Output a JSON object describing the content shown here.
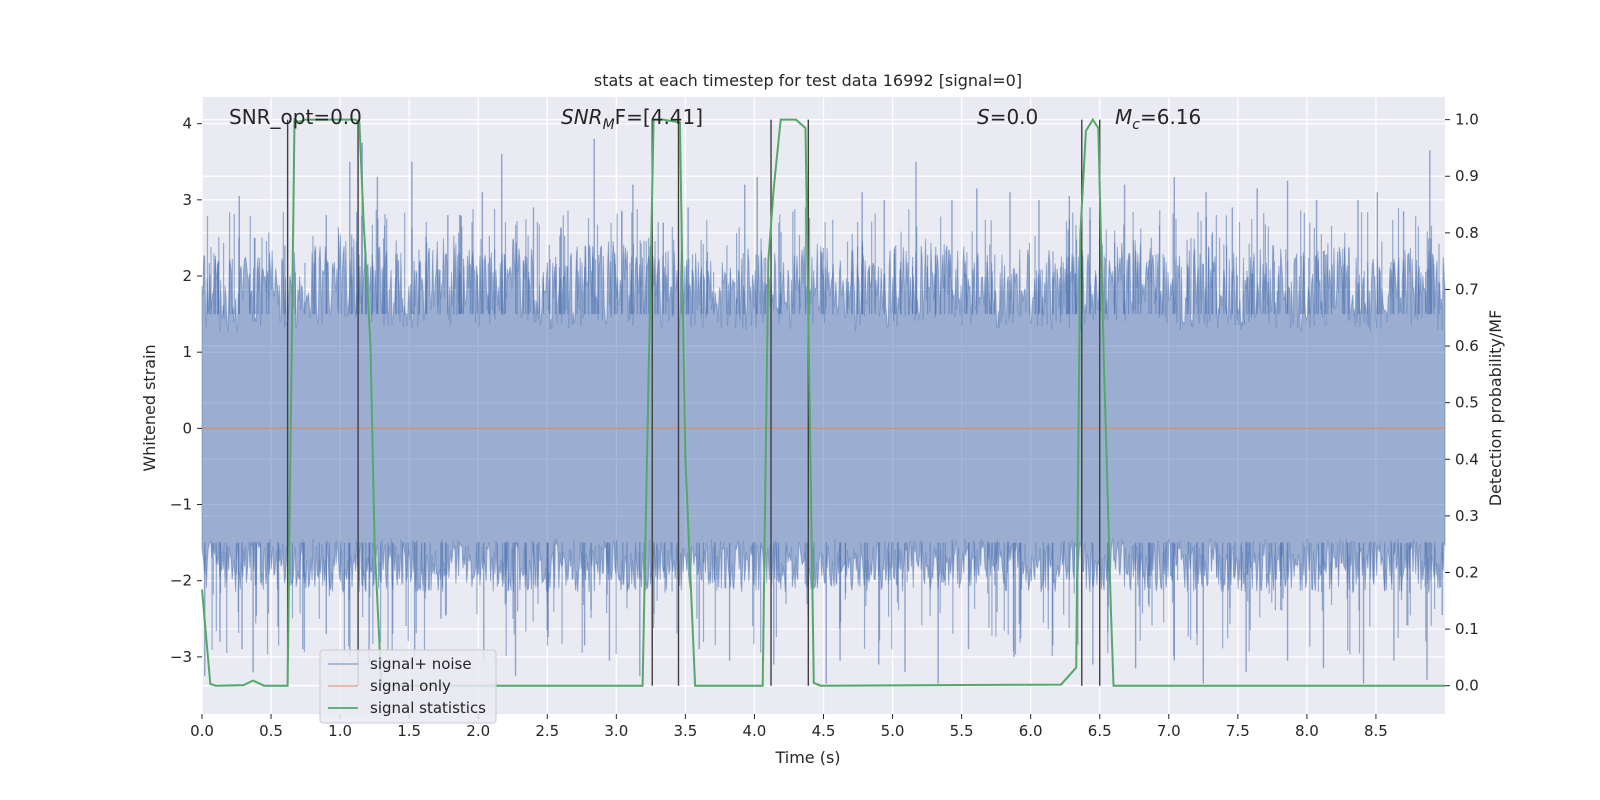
{
  "chart_data": {
    "type": "line",
    "title": "stats at each timestep for test data 16992 [signal=0]",
    "xlabel": "Time (s)",
    "ylabel": "Whitened strain",
    "ylabel_right": "Detection probability/MF",
    "xlim": [
      0.0,
      9.0
    ],
    "ylim": [
      -3.75,
      4.35
    ],
    "ylim_right": [
      -0.05,
      1.04
    ],
    "x_ticks": [
      0.0,
      0.5,
      1.0,
      1.5,
      2.0,
      2.5,
      3.0,
      3.5,
      4.0,
      4.5,
      5.0,
      5.5,
      6.0,
      6.5,
      7.0,
      7.5,
      8.0,
      8.5
    ],
    "x_tick_labels": [
      "0.0",
      "0.5",
      "1.0",
      "1.5",
      "2.0",
      "2.5",
      "3.0",
      "3.5",
      "4.0",
      "4.5",
      "5.0",
      "5.5",
      "6.0",
      "6.5",
      "7.0",
      "7.5",
      "8.0",
      "8.5"
    ],
    "y_ticks": [
      -3,
      -2,
      -1,
      0,
      1,
      2,
      3,
      4
    ],
    "y_tick_labels": [
      "−3",
      "−2",
      "−1",
      "0",
      "1",
      "2",
      "3",
      "4"
    ],
    "y_right_ticks": [
      0.0,
      0.1,
      0.2,
      0.3,
      0.4,
      0.5,
      0.6,
      0.7,
      0.8,
      0.9,
      1.0
    ],
    "y_right_tick_labels": [
      "0.0",
      "0.1",
      "0.2",
      "0.3",
      "0.4",
      "0.5",
      "0.6",
      "0.7",
      "0.8",
      "0.9",
      "1.0"
    ],
    "grid": true,
    "annotations": {
      "snr_opt": "SNR_opt=0.0",
      "snr_mf_main": "SNR",
      "snr_mf_sub": "M",
      "snr_mf_rest": "F=[4.41]",
      "s_main": "S",
      "s_rest": "=0.0",
      "mc_main": "M",
      "mc_sub": "c",
      "mc_rest": "=6.16"
    },
    "legend_position": "lower-left",
    "legend": [
      "signal+ noise",
      "signal only",
      "signal statistics"
    ],
    "colors": {
      "noise": "#4c72b0",
      "signal_only": "#dd8452",
      "statistics": "#55a868",
      "vlines": "#404040",
      "background": "#eaeaf2",
      "grid": "#ffffff"
    },
    "series": [
      {
        "name": "signal+ noise",
        "axis": "left",
        "description_upper_envelope": [
          [
            0.0,
            2.3
          ],
          [
            0.25,
            2.2
          ],
          [
            0.5,
            2.4
          ],
          [
            0.75,
            2.3
          ],
          [
            1.0,
            2.6
          ],
          [
            1.25,
            2.4
          ],
          [
            1.5,
            2.3
          ],
          [
            1.75,
            2.5
          ],
          [
            2.0,
            2.3
          ],
          [
            2.25,
            2.6
          ],
          [
            2.5,
            2.2
          ],
          [
            2.75,
            2.4
          ],
          [
            3.0,
            2.5
          ],
          [
            3.25,
            2.3
          ],
          [
            3.5,
            2.4
          ],
          [
            3.75,
            2.2
          ],
          [
            4.0,
            2.4
          ],
          [
            4.25,
            2.3
          ],
          [
            4.5,
            2.5
          ],
          [
            4.75,
            2.3
          ],
          [
            5.0,
            2.4
          ],
          [
            5.25,
            2.5
          ],
          [
            5.5,
            2.4
          ],
          [
            5.75,
            2.3
          ],
          [
            6.0,
            2.4
          ],
          [
            6.25,
            2.3
          ],
          [
            6.5,
            2.4
          ],
          [
            6.75,
            2.5
          ],
          [
            7.0,
            2.3
          ],
          [
            7.25,
            2.4
          ],
          [
            7.5,
            2.3
          ],
          [
            7.75,
            2.4
          ],
          [
            8.0,
            2.3
          ],
          [
            8.25,
            2.4
          ],
          [
            8.5,
            2.3
          ],
          [
            8.75,
            2.4
          ],
          [
            9.0,
            2.3
          ]
        ],
        "peaks": [
          [
            0.12,
            2.2
          ],
          [
            0.27,
            3.05
          ],
          [
            0.38,
            2.5
          ],
          [
            0.6,
            2.4
          ],
          [
            0.9,
            2.8
          ],
          [
            1.07,
            3.5
          ],
          [
            1.16,
            3.75
          ],
          [
            1.27,
            3.3
          ],
          [
            1.52,
            3.5
          ],
          [
            1.78,
            2.8
          ],
          [
            2.03,
            3.1
          ],
          [
            2.17,
            3.6
          ],
          [
            2.4,
            2.9
          ],
          [
            2.84,
            3.8
          ],
          [
            3.12,
            3.2
          ],
          [
            3.34,
            2.7
          ],
          [
            3.52,
            2.9
          ],
          [
            3.93,
            3.2
          ],
          [
            4.02,
            3.3
          ],
          [
            4.37,
            2.9
          ],
          [
            4.78,
            3.1
          ],
          [
            4.94,
            3.0
          ],
          [
            5.17,
            3.5
          ],
          [
            5.43,
            3.0
          ],
          [
            5.61,
            3.15
          ],
          [
            5.85,
            3.1
          ],
          [
            6.06,
            3.0
          ],
          [
            6.28,
            3.05
          ],
          [
            6.43,
            2.9
          ],
          [
            6.68,
            3.2
          ],
          [
            7.04,
            3.3
          ],
          [
            7.27,
            3.1
          ],
          [
            7.46,
            2.9
          ],
          [
            7.64,
            3.15
          ],
          [
            7.86,
            3.25
          ],
          [
            8.07,
            3.0
          ],
          [
            8.37,
            3.0
          ],
          [
            8.51,
            3.1
          ],
          [
            8.7,
            2.85
          ],
          [
            8.89,
            3.65
          ]
        ],
        "troughs": [
          [
            0.02,
            -3.25
          ],
          [
            0.13,
            -2.8
          ],
          [
            0.29,
            -2.9
          ],
          [
            0.37,
            -3.2
          ],
          [
            0.55,
            -2.6
          ],
          [
            0.73,
            -2.9
          ],
          [
            0.9,
            -2.7
          ],
          [
            1.07,
            -3.0
          ],
          [
            1.21,
            -3.1
          ],
          [
            1.54,
            -3.0
          ],
          [
            1.73,
            -2.5
          ],
          [
            2.04,
            -3.05
          ],
          [
            2.27,
            -3.25
          ],
          [
            2.5,
            -2.65
          ],
          [
            2.77,
            -2.85
          ],
          [
            2.95,
            -3.05
          ],
          [
            3.17,
            -3.25
          ],
          [
            3.6,
            -2.9
          ],
          [
            3.82,
            -3.05
          ],
          [
            4.14,
            -3.1
          ],
          [
            4.52,
            -3.35
          ],
          [
            4.62,
            -3.05
          ],
          [
            4.9,
            -3.1
          ],
          [
            5.09,
            -3.2
          ],
          [
            5.33,
            -3.35
          ],
          [
            5.55,
            -2.9
          ],
          [
            5.88,
            -3.0
          ],
          [
            6.16,
            -2.85
          ],
          [
            6.45,
            -3.1
          ],
          [
            6.76,
            -3.15
          ],
          [
            7.04,
            -3.05
          ],
          [
            7.25,
            -3.35
          ],
          [
            7.56,
            -3.2
          ],
          [
            7.86,
            -3.05
          ],
          [
            8.12,
            -3.15
          ],
          [
            8.41,
            -3.35
          ],
          [
            8.63,
            -3.05
          ],
          [
            8.87,
            -3.3
          ],
          [
            8.98,
            -2.45
          ]
        ]
      },
      {
        "name": "signal only",
        "axis": "left",
        "x": [
          0.0,
          9.0
        ],
        "y": [
          0.0,
          0.0
        ]
      },
      {
        "name": "signal statistics",
        "axis": "right",
        "x": [
          0.0,
          0.06,
          0.1,
          0.3,
          0.37,
          0.45,
          0.62,
          0.67,
          0.7,
          0.75,
          1.11,
          1.14,
          1.17,
          1.22,
          1.25,
          1.3,
          3.19,
          3.27,
          3.34,
          3.46,
          3.5,
          3.57,
          4.06,
          4.1,
          4.14,
          4.19,
          4.3,
          4.37,
          4.43,
          4.48,
          6.22,
          6.33,
          6.36,
          6.4,
          6.45,
          6.49,
          6.53,
          6.58,
          6.6,
          9.0
        ],
        "y": [
          0.17,
          0.003,
          0.0,
          0.001,
          0.009,
          0.0,
          0.0,
          1.0,
          0.996,
          1.0,
          1.0,
          0.995,
          0.82,
          0.6,
          0.25,
          0.0,
          0.0,
          1.0,
          1.0,
          0.995,
          0.4,
          0.0,
          0.0,
          0.75,
          0.88,
          1.0,
          1.0,
          0.985,
          0.005,
          0.0,
          0.002,
          0.032,
          0.8,
          0.98,
          1.0,
          0.985,
          0.57,
          0.14,
          0.0,
          0.0
        ]
      }
    ],
    "vlines_x": [
      0.62,
      1.13,
      3.26,
      3.45,
      4.12,
      4.39,
      6.37,
      6.5
    ]
  }
}
